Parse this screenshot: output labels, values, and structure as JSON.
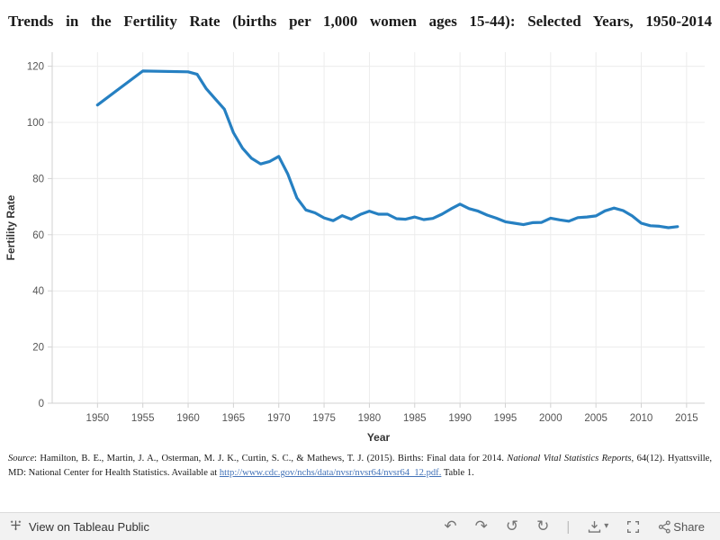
{
  "title": "Trends in the Fertility Rate (births per 1,000 women ages 15-44): Selected Years, 1950-2014",
  "chart_data": {
    "type": "line",
    "title": "Trends in the Fertility Rate (births per 1,000 women ages 15-44): Selected Years, 1950-2014",
    "xlabel": "Year",
    "ylabel": "Fertility Rate",
    "line_color": "#2680c2",
    "grid": true,
    "legend": false,
    "xlim": [
      1945,
      2017
    ],
    "ylim": [
      0,
      125
    ],
    "xticks": [
      1950,
      1955,
      1960,
      1965,
      1970,
      1975,
      1980,
      1985,
      1990,
      1995,
      2000,
      2005,
      2010,
      2015
    ],
    "yticks": [
      0,
      20,
      40,
      60,
      80,
      100,
      120
    ],
    "x": [
      1950,
      1955,
      1960,
      1961,
      1962,
      1963,
      1964,
      1965,
      1966,
      1967,
      1968,
      1969,
      1970,
      1971,
      1972,
      1973,
      1974,
      1975,
      1976,
      1977,
      1978,
      1979,
      1980,
      1981,
      1982,
      1983,
      1984,
      1985,
      1986,
      1987,
      1988,
      1989,
      1990,
      1991,
      1992,
      1993,
      1994,
      1995,
      1996,
      1997,
      1998,
      1999,
      2000,
      2001,
      2002,
      2003,
      2004,
      2005,
      2006,
      2007,
      2008,
      2009,
      2010,
      2011,
      2012,
      2013,
      2014
    ],
    "values": [
      106.2,
      118.3,
      118.0,
      117.1,
      112.0,
      108.3,
      104.7,
      96.3,
      90.8,
      87.2,
      85.2,
      86.1,
      87.9,
      81.6,
      73.1,
      68.8,
      67.8,
      66.0,
      65.0,
      66.8,
      65.5,
      67.2,
      68.4,
      67.3,
      67.3,
      65.7,
      65.5,
      66.3,
      65.4,
      65.8,
      67.3,
      69.2,
      70.9,
      69.3,
      68.4,
      67.0,
      65.9,
      64.6,
      64.1,
      63.6,
      64.3,
      64.4,
      65.9,
      65.3,
      64.8,
      66.1,
      66.3,
      66.7,
      68.5,
      69.5,
      68.6,
      66.7,
      64.1,
      63.2,
      63.0,
      62.5,
      62.9
    ]
  },
  "source": {
    "label": "Source",
    "part1": ": Hamilton, B. E., Martin, J. A., Osterman, M. J. K., Curtin, S. C., & Mathews, T. J. (2015). Births: Final data for 2014. ",
    "journal": "National Vital Statistics Reports",
    "part2": ", 64(12). Hyattsville, MD: National Center for Health Statistics. Available at ",
    "link_text": "http://www.cdc.gov/nchs/data/nvsr/nvsr64/nvsr64_12.pdf.",
    "part3": " Table 1."
  },
  "toolbar": {
    "view_label": "View on Tableau Public",
    "share_label": "Share",
    "glyphs": {
      "undo": "↶",
      "redo": "↷",
      "revert": "↺",
      "refresh": "↻",
      "divider": "|",
      "caret": "▾"
    }
  }
}
